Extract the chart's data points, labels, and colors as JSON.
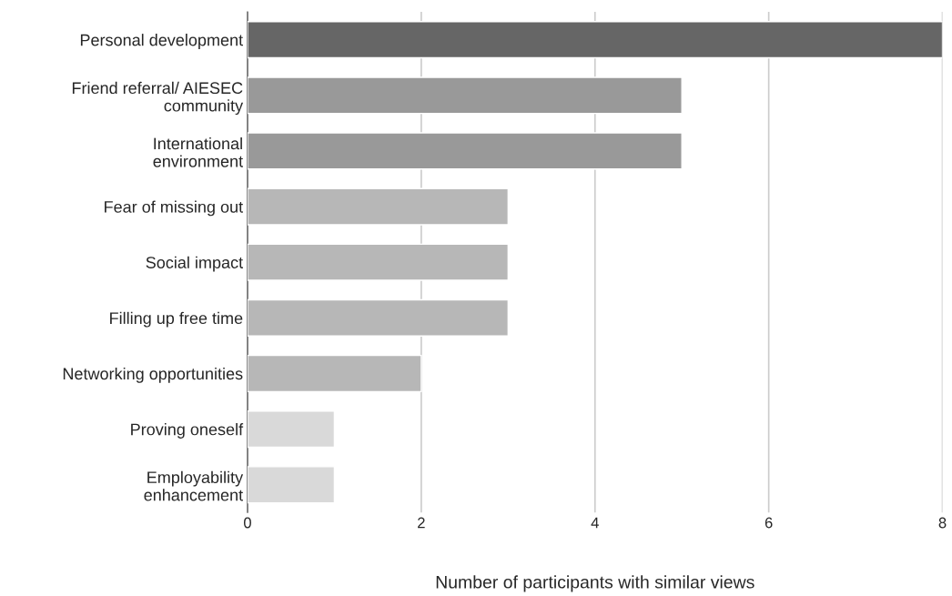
{
  "chart_data": {
    "type": "bar",
    "orientation": "horizontal",
    "xlabel": "Number of participants with similar views",
    "categories": [
      "Personal development",
      "Friend referral/ AIESEC\ncommunity",
      "International\nenvironment",
      "Fear of missing out",
      "Social impact",
      "Filling up free time",
      "Networking opportunities",
      "Proving oneself",
      "Employability\nenhancement"
    ],
    "values": [
      8,
      5,
      5,
      3,
      3,
      3,
      2,
      1,
      1
    ],
    "colors": [
      "#666666",
      "#999999",
      "#999999",
      "#b7b7b7",
      "#b7b7b7",
      "#b7b7b7",
      "#b7b7b7",
      "#d9d9d9",
      "#d9d9d9"
    ],
    "xlim": [
      0,
      8
    ],
    "xticks": [
      0,
      2,
      4,
      6,
      8
    ],
    "grid": "x"
  }
}
